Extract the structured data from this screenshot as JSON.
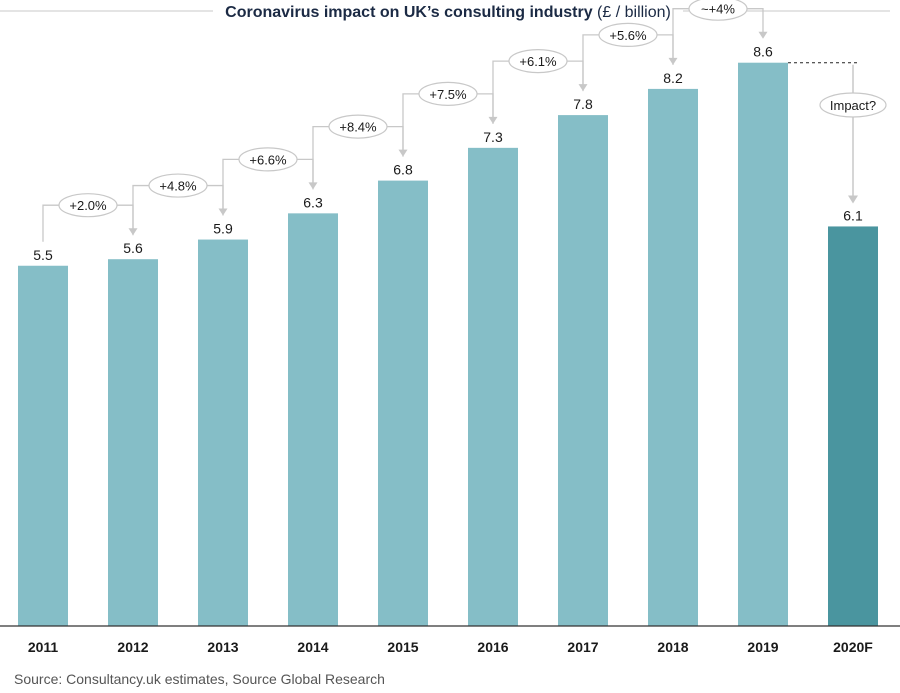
{
  "chart_data": {
    "type": "bar",
    "title_main": "Coronavirus impact on UK’s consulting industry",
    "title_unit": "(£ / billion)",
    "categories": [
      "2011",
      "2012",
      "2013",
      "2014",
      "2015",
      "2016",
      "2017",
      "2018",
      "2019",
      "2020F"
    ],
    "values": [
      5.5,
      5.6,
      5.9,
      6.3,
      6.8,
      7.3,
      7.8,
      8.2,
      8.6,
      6.1
    ],
    "value_labels": [
      "5.5",
      "5.6",
      "5.9",
      "6.3",
      "6.8",
      "7.3",
      "7.8",
      "8.2",
      "8.6",
      "6.1"
    ],
    "growth_labels": [
      "+2.0%",
      "+4.8%",
      "+6.6%",
      "+8.4%",
      "+7.5%",
      "+6.1%",
      "+5.6%",
      "~+4%"
    ],
    "impact_label": "Impact?",
    "source": "Source: Consultancy.uk estimates, Source Global Research",
    "ylim": [
      0,
      9
    ],
    "colors": {
      "bar": "#85bec7",
      "forecast_bar": "#4a959f",
      "connector": "#c8c8c8",
      "axis": "#333333"
    }
  }
}
